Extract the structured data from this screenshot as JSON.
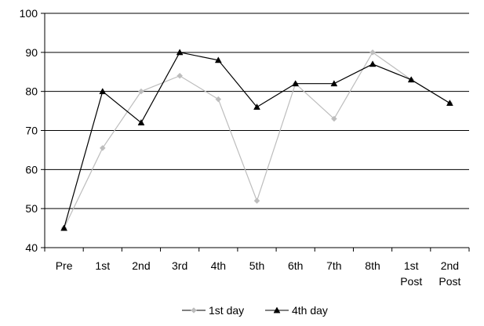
{
  "chart_data": {
    "type": "line",
    "categories": [
      "Pre",
      "1st",
      "2nd",
      "3rd",
      "4th",
      "5th",
      "6th",
      "7th",
      "8th",
      "1st Post",
      "2nd Post"
    ],
    "series": [
      {
        "name": "1st day",
        "values": [
          45,
          65.5,
          80,
          84,
          78,
          52,
          82,
          73,
          90,
          83,
          77
        ],
        "color": "#bdbdbd",
        "marker": "diamond"
      },
      {
        "name": "4th day",
        "values": [
          45,
          80,
          72,
          90,
          88,
          76,
          82,
          82,
          87,
          83,
          77
        ],
        "color": "#000000",
        "marker": "triangle"
      }
    ],
    "ylim": [
      40,
      100
    ],
    "yticks": [
      40,
      50,
      60,
      70,
      80,
      90,
      100
    ],
    "xlabel": "",
    "ylabel": "",
    "title": "",
    "grid": "horizontal",
    "legend_position": "bottom"
  }
}
